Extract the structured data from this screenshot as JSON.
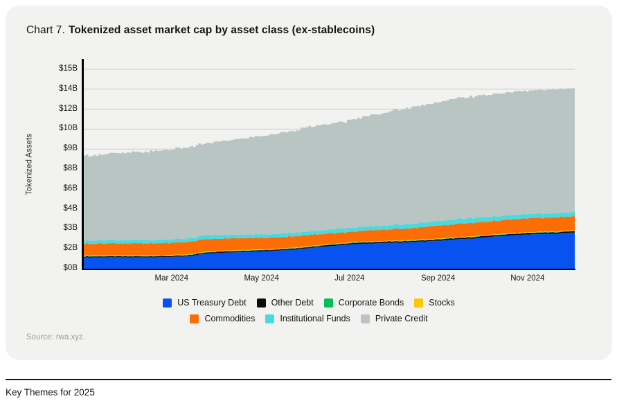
{
  "card": {
    "title_prefix": "Chart 7.",
    "title_main": "Tokenized asset market cap by asset class (ex-stablecoins)",
    "source": "Source: rwa.xyz."
  },
  "footer": {
    "text": "Key Themes for 2025"
  },
  "colors": {
    "card_background": "#f2f2f0",
    "gridline": "#c9c9c8",
    "axis": "#000000",
    "us_treasury_debt": "#0852f0",
    "other_debt": "#0c0c0c",
    "corporate_bonds": "#00bf57",
    "stocks": "#fcc800",
    "commodities": "#fc6d05",
    "institutional_funds": "#4bd8de",
    "private_credit": "#b8c5c2"
  },
  "chart_data": {
    "type": "area",
    "stacked": true,
    "title": "Tokenized asset market cap by asset class (ex-stablecoins)",
    "ylabel": "Tokenized Assets",
    "ylim": [
      0,
      15
    ],
    "grid": true,
    "legend_position": "bottom",
    "y_ticks": [
      {
        "label": "$0B",
        "value": 0
      },
      {
        "label": "$2B",
        "value": 1.5
      },
      {
        "label": "$3B",
        "value": 3
      },
      {
        "label": "$4B",
        "value": 4.5
      },
      {
        "label": "$6B",
        "value": 6
      },
      {
        "label": "$8B",
        "value": 7.5
      },
      {
        "label": "$9B",
        "value": 9
      },
      {
        "label": "$10B",
        "value": 10.5
      },
      {
        "label": "$12B",
        "value": 12
      },
      {
        "label": "$14B",
        "value": 13.5
      },
      {
        "label": "$15B",
        "value": 15
      }
    ],
    "x_ticks": [
      {
        "label": "Mar 2024",
        "pos": 0.18
      },
      {
        "label": "May 2024",
        "pos": 0.363
      },
      {
        "label": "Jul 2024",
        "pos": 0.542
      },
      {
        "label": "Sep 2024",
        "pos": 0.722
      },
      {
        "label": "Nov 2024",
        "pos": 0.904
      }
    ],
    "x_sample_note": "25 samples, Jan 2024 through early Dec 2024, values in $B",
    "series": [
      {
        "name": "US Treasury Debt",
        "color": "#0852f0",
        "values": [
          0.85,
          0.86,
          0.85,
          0.86,
          0.88,
          0.92,
          1.15,
          1.22,
          1.28,
          1.33,
          1.42,
          1.55,
          1.7,
          1.83,
          1.9,
          1.95,
          2.0,
          2.08,
          2.18,
          2.28,
          2.42,
          2.52,
          2.6,
          2.63,
          2.74
        ]
      },
      {
        "name": "Other Debt",
        "color": "#0c0c0c",
        "values": [
          0.07,
          0.07,
          0.07,
          0.07,
          0.07,
          0.07,
          0.08,
          0.08,
          0.08,
          0.08,
          0.08,
          0.08,
          0.09,
          0.09,
          0.09,
          0.09,
          0.09,
          0.09,
          0.1,
          0.1,
          0.1,
          0.1,
          0.1,
          0.1,
          0.1
        ]
      },
      {
        "name": "Corporate Bonds",
        "color": "#00bf57",
        "values": [
          0.03,
          0.03,
          0.03,
          0.03,
          0.03,
          0.03,
          0.03,
          0.03,
          0.03,
          0.03,
          0.03,
          0.03,
          0.03,
          0.03,
          0.03,
          0.03,
          0.03,
          0.03,
          0.03,
          0.03,
          0.03,
          0.03,
          0.03,
          0.03,
          0.03
        ]
      },
      {
        "name": "Stocks",
        "color": "#fcc800",
        "values": [
          0.05,
          0.05,
          0.05,
          0.05,
          0.05,
          0.05,
          0.04,
          0.04,
          0.04,
          0.04,
          0.04,
          0.04,
          0.04,
          0.04,
          0.04,
          0.04,
          0.04,
          0.04,
          0.04,
          0.04,
          0.04,
          0.04,
          0.04,
          0.04,
          0.04
        ]
      },
      {
        "name": "Commodities",
        "color": "#fc6d05",
        "values": [
          0.88,
          0.89,
          0.9,
          0.89,
          0.9,
          0.92,
          0.95,
          0.9,
          0.88,
          0.85,
          0.86,
          0.83,
          0.8,
          0.78,
          0.82,
          0.85,
          0.9,
          0.95,
          0.98,
          1.0,
          1.0,
          1.02,
          1.04,
          1.05,
          1.08
        ]
      },
      {
        "name": "Institutional Funds",
        "color": "#4bd8de",
        "values": [
          0.24,
          0.24,
          0.25,
          0.24,
          0.25,
          0.26,
          0.28,
          0.27,
          0.26,
          0.26,
          0.27,
          0.28,
          0.29,
          0.3,
          0.31,
          0.32,
          0.34,
          0.35,
          0.36,
          0.36,
          0.34,
          0.33,
          0.32,
          0.31,
          0.3
        ]
      },
      {
        "name": "Private Credit",
        "color": "#b8c5c2",
        "values": [
          6.38,
          6.48,
          6.55,
          6.64,
          6.74,
          6.85,
          6.92,
          7.11,
          7.28,
          7.46,
          7.65,
          7.84,
          7.95,
          8.08,
          8.36,
          8.57,
          8.75,
          8.91,
          9.06,
          9.14,
          9.22,
          9.26,
          9.27,
          9.34,
          9.31
        ]
      }
    ],
    "legend_rows": [
      [
        "US Treasury Debt",
        "Other Debt",
        "Corporate Bonds",
        "Stocks"
      ],
      [
        "Commodities",
        "Institutional Funds",
        "Private Credit"
      ]
    ]
  }
}
